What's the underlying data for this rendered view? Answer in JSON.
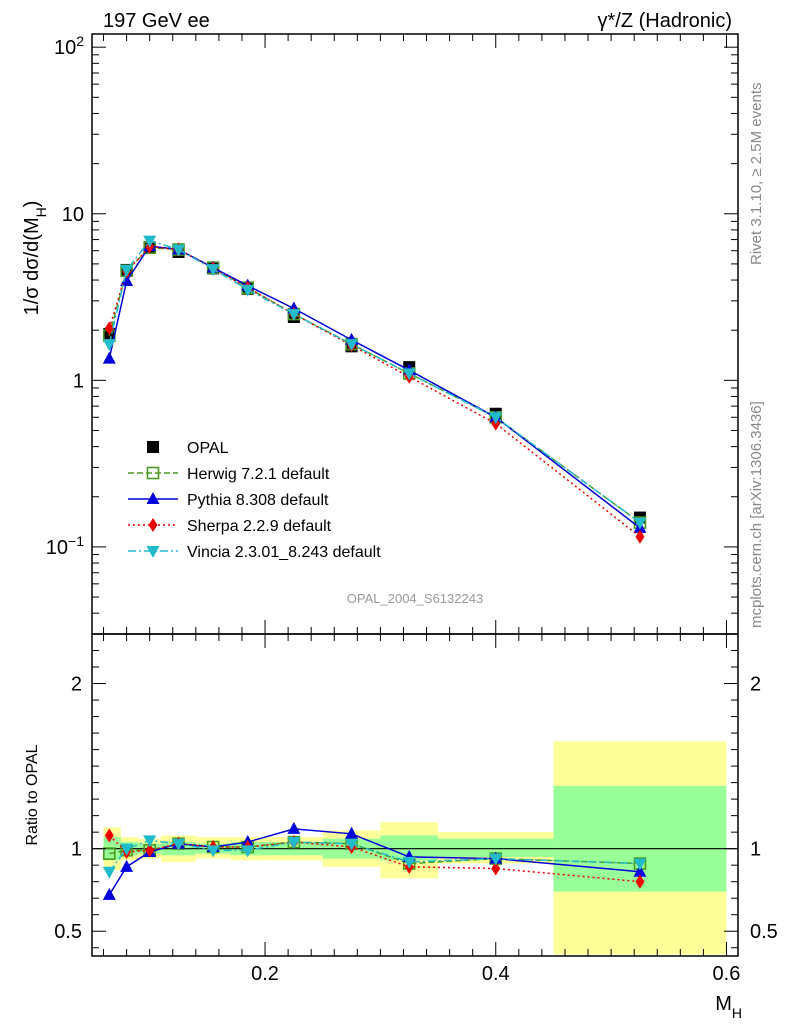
{
  "header": {
    "left": "197 GeV ee",
    "right_prefix": "γ*/Z (Hadronic)"
  },
  "side_labels": {
    "rivet": "Rivet 3.1.10, ≥ 2.5M events",
    "mcplots": "mcplots.cern.ch [arXiv:1306.3436]"
  },
  "reference": "OPAL_2004_S6132243",
  "colors": {
    "opal": "#000000",
    "herwig": "#4a9a1e",
    "pythia": "#0000dd",
    "sherpa": "#ee0000",
    "vincia": "#22bbcc",
    "band_inner": "#99ff99",
    "band_outer": "#ffff99"
  },
  "chart_data": [
    {
      "type": "scatter",
      "title": "",
      "ylabel": "1/σ dσ/d(M_H)",
      "xlabel": "",
      "yscale": "log",
      "xlim": [
        0.05,
        0.61
      ],
      "ylim": [
        0.03,
        120
      ],
      "yticks": [
        {
          "value": 100,
          "mantissa": "10",
          "exp": "2"
        },
        {
          "value": 10,
          "mantissa": "10",
          "exp": ""
        },
        {
          "value": 1,
          "mantissa": "1",
          "exp": ""
        },
        {
          "value": 0.1,
          "mantissa": "10",
          "exp": "−1"
        }
      ],
      "x": [
        0.065,
        0.08,
        0.1,
        0.125,
        0.155,
        0.185,
        0.225,
        0.275,
        0.325,
        0.4,
        0.525
      ],
      "legend_position": "bottom-left",
      "series": [
        {
          "name": "OPAL",
          "key": "opal",
          "values": [
            1.9,
            4.6,
            6.3,
            5.9,
            4.7,
            3.55,
            2.4,
            1.6,
            1.2,
            0.63,
            0.15
          ]
        },
        {
          "name": "Herwig 7.2.1 default",
          "key": "herwig",
          "values": [
            1.85,
            4.55,
            6.25,
            6.1,
            4.75,
            3.6,
            2.5,
            1.65,
            1.1,
            0.6,
            0.14
          ]
        },
        {
          "name": "Pythia 8.308 default",
          "key": "pythia",
          "values": [
            1.35,
            3.95,
            6.4,
            6.1,
            4.75,
            3.7,
            2.7,
            1.75,
            1.15,
            0.6,
            0.13
          ]
        },
        {
          "name": "Sherpa 2.2.9 default",
          "key": "sherpa",
          "values": [
            2.05,
            4.5,
            6.35,
            6.1,
            4.7,
            3.6,
            2.5,
            1.62,
            1.05,
            0.55,
            0.115
          ]
        },
        {
          "name": "Vincia 2.3.01_8.243 default",
          "key": "vincia",
          "values": [
            1.65,
            4.6,
            6.9,
            6.1,
            4.65,
            3.5,
            2.5,
            1.65,
            1.1,
            0.6,
            0.14
          ]
        }
      ]
    },
    {
      "type": "scatter",
      "title": "",
      "ylabel": "Ratio to OPAL",
      "xlabel": "M_H",
      "xlim": [
        0.05,
        0.61
      ],
      "ylim": [
        0.35,
        2.3
      ],
      "yticks": [
        0.5,
        1,
        2
      ],
      "xticks": [
        0.2,
        0.4,
        0.6
      ],
      "bands": [
        {
          "x0": 0.06,
          "x1": 0.075,
          "inner": [
            0.93,
            1.07
          ],
          "outer": [
            0.87,
            1.13
          ]
        },
        {
          "x0": 0.075,
          "x1": 0.09,
          "inner": [
            0.96,
            1.04
          ],
          "outer": [
            0.93,
            1.07
          ]
        },
        {
          "x0": 0.09,
          "x1": 0.11,
          "inner": [
            0.97,
            1.03
          ],
          "outer": [
            0.94,
            1.06
          ]
        },
        {
          "x0": 0.11,
          "x1": 0.14,
          "inner": [
            0.96,
            1.04
          ],
          "outer": [
            0.92,
            1.08
          ]
        },
        {
          "x0": 0.14,
          "x1": 0.17,
          "inner": [
            0.97,
            1.03
          ],
          "outer": [
            0.94,
            1.07
          ]
        },
        {
          "x0": 0.17,
          "x1": 0.2,
          "inner": [
            0.96,
            1.04
          ],
          "outer": [
            0.93,
            1.07
          ]
        },
        {
          "x0": 0.2,
          "x1": 0.25,
          "inner": [
            0.96,
            1.04
          ],
          "outer": [
            0.93,
            1.07
          ]
        },
        {
          "x0": 0.25,
          "x1": 0.3,
          "inner": [
            0.94,
            1.06
          ],
          "outer": [
            0.89,
            1.11
          ]
        },
        {
          "x0": 0.3,
          "x1": 0.35,
          "inner": [
            0.93,
            1.08
          ],
          "outer": [
            0.82,
            1.16
          ]
        },
        {
          "x0": 0.35,
          "x1": 0.45,
          "inner": [
            0.95,
            1.06
          ],
          "outer": [
            0.91,
            1.1
          ]
        },
        {
          "x0": 0.45,
          "x1": 0.6,
          "inner": [
            0.74,
            1.38
          ],
          "outer": [
            0.36,
            1.65
          ]
        }
      ],
      "series": [
        {
          "name": "Herwig 7.2.1 default",
          "key": "herwig",
          "values": [
            0.97,
            0.99,
            0.99,
            1.03,
            1.01,
            1.01,
            1.04,
            1.03,
            0.91,
            0.94,
            0.91
          ]
        },
        {
          "name": "Pythia 8.308 default",
          "key": "pythia",
          "values": [
            0.72,
            0.89,
            0.98,
            1.03,
            1.01,
            1.04,
            1.12,
            1.09,
            0.95,
            0.94,
            0.86
          ]
        },
        {
          "name": "Sherpa 2.2.9 default",
          "key": "sherpa",
          "values": [
            1.08,
            0.98,
            0.99,
            1.03,
            1.01,
            1.01,
            1.04,
            1.01,
            0.89,
            0.88,
            0.8
          ]
        },
        {
          "name": "Vincia 2.3.01_8.243 default",
          "key": "vincia",
          "values": [
            0.86,
            1.0,
            1.05,
            1.03,
            0.99,
            0.99,
            1.04,
            1.03,
            0.92,
            0.94,
            0.91
          ]
        }
      ]
    }
  ]
}
